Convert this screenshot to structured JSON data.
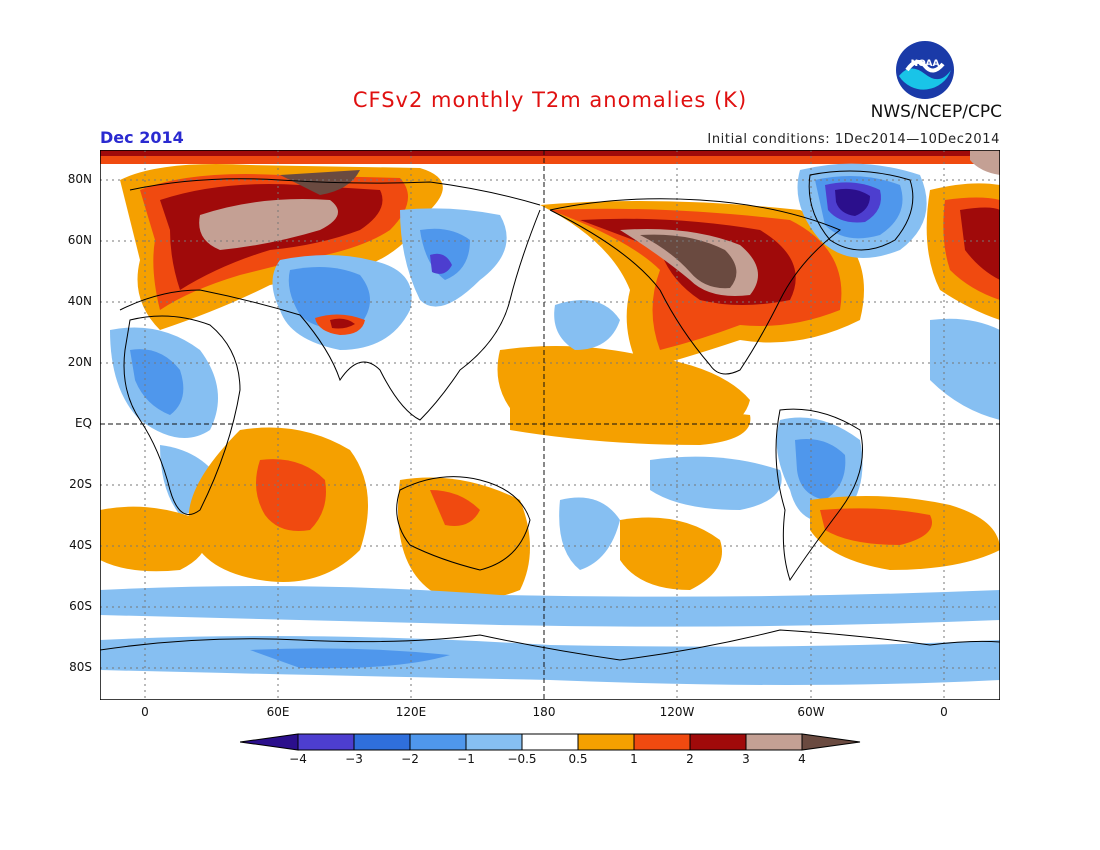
{
  "header": {
    "title": "CFSv2 monthly T2m anomalies (K)",
    "month": "Dec 2014",
    "initial_conditions": "Initial conditions: 1Dec2014—10Dec2014",
    "agency": "NWS/NCEP/CPC",
    "logo_text": "NOAA"
  },
  "map": {
    "latitude_labels": [
      "80N",
      "60N",
      "40N",
      "20N",
      "EQ",
      "20S",
      "40S",
      "60S",
      "80S"
    ],
    "longitude_labels": [
      "0",
      "60E",
      "120E",
      "180",
      "120W",
      "60W",
      "0"
    ],
    "colors": {
      "lt_-4": "#2b0f8c",
      "-4_-3": "#4d3ecf",
      "-3_-2": "#2f6fdc",
      "-2_-1": "#4f97ec",
      "-1_-0.5": "#86bff2",
      "-0.5_0.5": "#ffffff",
      "0.5_1": "#f5a000",
      "1_2": "#f04a10",
      "2_3": "#a00a0a",
      "3_4": "#c4a094",
      "gt_4": "#6a4a40"
    }
  },
  "colorbar": {
    "labels": [
      "−4",
      "−3",
      "−2",
      "−1",
      "−0.5",
      "0.5",
      "1",
      "2",
      "3",
      "4"
    ],
    "colors": [
      "#2b0f8c",
      "#4d3ecf",
      "#2f6fdc",
      "#4f97ec",
      "#86bff2",
      "#ffffff",
      "#f5a000",
      "#f04a10",
      "#a00a0a",
      "#c4a094",
      "#6a4a40"
    ]
  }
}
